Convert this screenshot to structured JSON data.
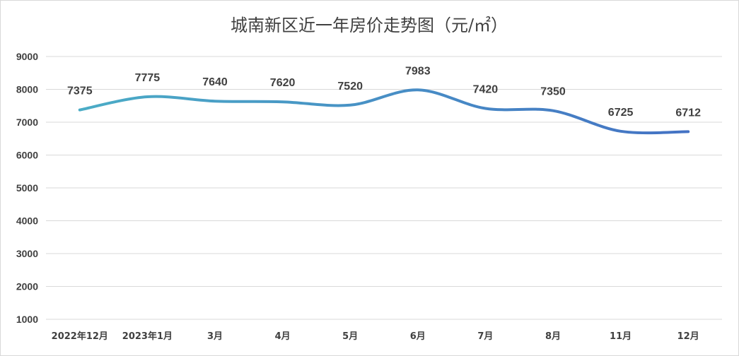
{
  "chart_data": {
    "type": "line",
    "title": "城南新区近一年房价走势图（元/㎡）",
    "categories": [
      "2022年12月",
      "2023年1月",
      "3月",
      "4月",
      "5月",
      "6月",
      "7月",
      "8月",
      "11月",
      "12月"
    ],
    "values": [
      7375,
      7775,
      7640,
      7620,
      7520,
      7983,
      7420,
      7350,
      6725,
      6712
    ],
    "data_labels": [
      "7375",
      "7775",
      "7640",
      "7620",
      "7520",
      "7983",
      "7420",
      "7350",
      "6725",
      "6712"
    ],
    "yticks": [
      "1000",
      "2000",
      "3000",
      "4000",
      "5000",
      "6000",
      "7000",
      "8000",
      "9000"
    ],
    "ylim": [
      1000,
      9000
    ],
    "xlabel": "",
    "ylabel": "",
    "grid": true,
    "legend": "none",
    "line_color_start": "#4BACC6",
    "line_color_end": "#4472C4"
  }
}
